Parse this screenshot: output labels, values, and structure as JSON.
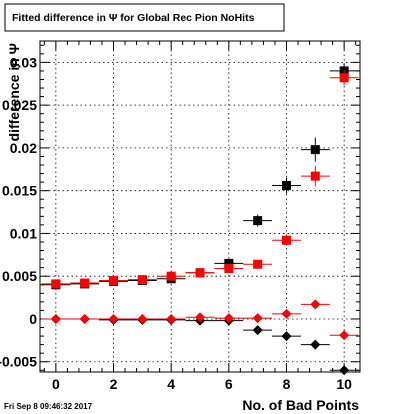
{
  "title": "Fitted difference in  Ψ  for Global Rec Pion NoHits",
  "timestamp": "Fri Sep  8 09:46:32 2017",
  "chart_data": {
    "type": "scatter",
    "title": "Fitted difference in  Ψ  for Global Rec Pion NoHits",
    "xlabel": "No. of Bad Points",
    "ylabel": "difference in Ψ",
    "xlim": [
      -0.55,
      10.55
    ],
    "ylim": [
      -0.0062,
      0.0325
    ],
    "grid": true,
    "x_ticks": [
      0,
      2,
      4,
      6,
      8,
      10
    ],
    "x_tick_labels": [
      "0",
      "2",
      "4",
      "6",
      "8",
      "10"
    ],
    "y_ticks": [
      -0.005,
      0,
      0.005,
      0.01,
      0.015,
      0.02,
      0.025,
      0.03
    ],
    "y_tick_labels": [
      "-0.005",
      "0",
      "0.005",
      "0.01",
      "0.015",
      "0.02",
      "0.025",
      "0.03"
    ],
    "series": [
      {
        "marker": "square",
        "color": "#000000",
        "x": [
          0,
          1,
          2,
          3,
          4,
          5,
          6,
          7,
          8,
          9,
          10
        ],
        "y": [
          0.004,
          0.0041,
          0.0044,
          0.0045,
          0.0047,
          0.0054,
          0.0065,
          0.0115,
          0.0156,
          0.0198,
          0.029
        ],
        "yerr": [
          0.0003,
          0.0003,
          0.0003,
          0.0003,
          0.0004,
          0.0004,
          0.0005,
          0.0007,
          0.0009,
          0.0014,
          0.0009
        ]
      },
      {
        "marker": "square",
        "color": "#ff0000",
        "x": [
          0,
          1,
          2,
          3,
          4,
          5,
          6,
          7,
          8,
          9,
          10
        ],
        "y": [
          0.0041,
          0.0042,
          0.0045,
          0.0046,
          0.005,
          0.0054,
          0.0059,
          0.0064,
          0.0092,
          0.0167,
          0.0282
        ],
        "yerr": [
          0.0003,
          0.0003,
          0.0003,
          0.0003,
          0.0004,
          0.0004,
          0.0004,
          0.0004,
          0.0006,
          0.0012,
          0.0009
        ]
      },
      {
        "marker": "diamond",
        "color": "#000000",
        "x": [
          0,
          1,
          2,
          3,
          4,
          5,
          6,
          7,
          8,
          9,
          10
        ],
        "y": [
          0,
          0,
          -0.0001,
          -0.0001,
          -0.0001,
          -0.0002,
          -0.0002,
          -0.0013,
          -0.002,
          -0.003,
          -0.006
        ],
        "yerr": [
          0.0001,
          0.0001,
          0.0001,
          0.0001,
          0.0001,
          0.0002,
          0.0002,
          0.0003,
          0.0004,
          0.0005,
          0.0004
        ]
      },
      {
        "marker": "diamond",
        "color": "#ff0000",
        "x": [
          0,
          1,
          2,
          3,
          4,
          5,
          6,
          7,
          8,
          9,
          10
        ],
        "y": [
          0,
          0,
          0,
          0,
          0,
          0.0002,
          0.0001,
          0.0001,
          0.0006,
          0.0017,
          -0.0019
        ],
        "yerr": [
          0.0001,
          0.0001,
          0.0001,
          0.0001,
          0.0001,
          0.0001,
          0.0002,
          0.0002,
          0.0003,
          0.0004,
          0.0004
        ]
      }
    ]
  }
}
